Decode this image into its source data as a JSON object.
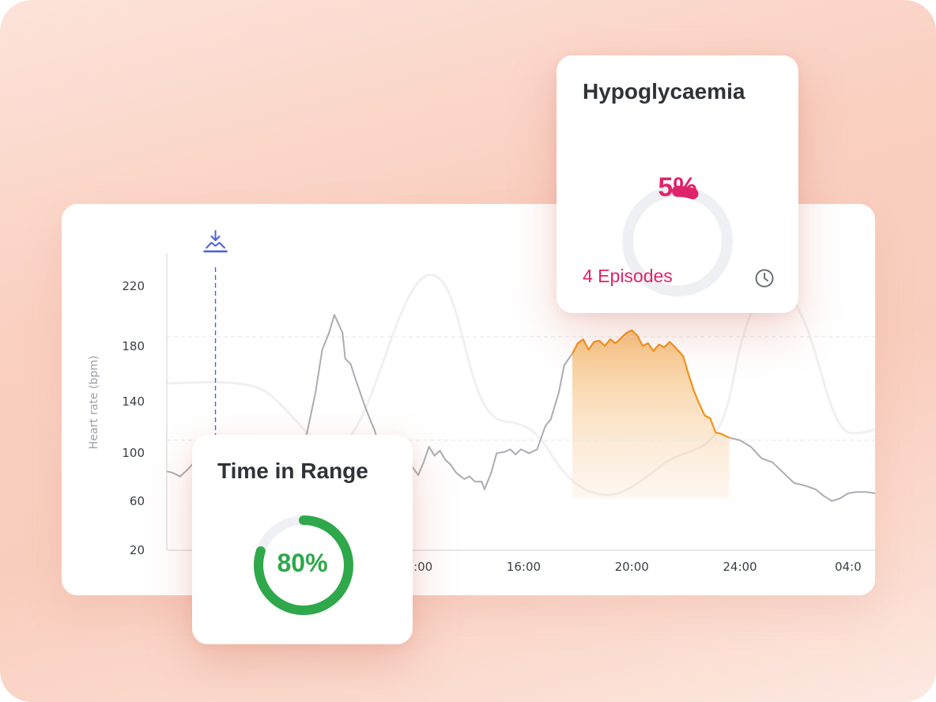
{
  "colors": {
    "line": "#a9adb3",
    "highlight": "#f0921a",
    "hypo": "#e0246b",
    "range": "#2ea84a",
    "track": "#eef0f3",
    "marker": "#4a5fe0"
  },
  "chart_data": {
    "type": "line",
    "title": "",
    "ylabel": "Heart rate (bpm)",
    "xlabel": "",
    "y_ticks": [
      20,
      60,
      100,
      140,
      180,
      220
    ],
    "x_ticks": [
      {
        "label": "12:00",
        "x": 12
      },
      {
        "label": "16:00",
        "x": 16
      },
      {
        "label": "20:00",
        "x": 20
      },
      {
        "label": "24:00",
        "x": 24
      },
      {
        "label": "04:0",
        "x": 28
      }
    ],
    "xlim": [
      2.8,
      29
    ],
    "ylim": [
      20,
      240
    ],
    "reference_lines": [
      185,
      105
    ],
    "marker": {
      "x": 4.6,
      "icon": "bolus-marker-icon"
    },
    "highlight_range": [
      17.8,
      23.7
    ],
    "series": [
      {
        "values": [
          [
            2.8,
            81
          ],
          [
            3.0,
            80
          ],
          [
            3.3,
            77
          ],
          [
            3.6,
            83
          ],
          [
            3.9,
            90
          ],
          [
            4.2,
            88
          ],
          [
            4.5,
            92
          ],
          [
            7.6,
            88
          ],
          [
            8.0,
            112
          ],
          [
            8.3,
            142
          ],
          [
            8.55,
            175
          ],
          [
            8.8,
            188
          ],
          [
            9.0,
            202
          ],
          [
            9.3,
            188
          ],
          [
            9.4,
            168
          ],
          [
            9.6,
            164
          ],
          [
            9.8,
            151
          ],
          [
            10.1,
            133
          ],
          [
            10.3,
            122
          ],
          [
            10.5,
            112
          ],
          [
            10.7,
            96
          ],
          [
            11.0,
            94
          ],
          [
            11.3,
            96
          ],
          [
            11.5,
            88
          ],
          [
            11.7,
            90
          ],
          [
            11.9,
            84
          ],
          [
            12.1,
            78
          ],
          [
            12.3,
            88
          ],
          [
            12.5,
            100
          ],
          [
            12.7,
            93
          ],
          [
            12.9,
            97
          ],
          [
            13.1,
            90
          ],
          [
            13.3,
            86
          ],
          [
            13.5,
            80
          ],
          [
            13.8,
            75
          ],
          [
            14.0,
            77
          ],
          [
            14.2,
            73
          ],
          [
            14.45,
            73
          ],
          [
            14.55,
            67
          ],
          [
            14.8,
            80
          ],
          [
            15.0,
            95
          ],
          [
            15.3,
            96
          ],
          [
            15.5,
            98
          ],
          [
            15.7,
            94
          ],
          [
            15.9,
            98
          ],
          [
            16.2,
            95
          ],
          [
            16.5,
            98
          ],
          [
            16.8,
            116
          ],
          [
            17.0,
            121
          ],
          [
            17.3,
            142
          ],
          [
            17.5,
            163
          ],
          [
            17.8,
            172
          ]
        ]
      },
      {
        "values": [
          [
            17.8,
            172
          ],
          [
            18.0,
            180
          ],
          [
            18.2,
            183
          ],
          [
            18.4,
            175
          ],
          [
            18.6,
            181
          ],
          [
            18.8,
            182
          ],
          [
            19.0,
            178
          ],
          [
            19.2,
            183
          ],
          [
            19.4,
            180
          ],
          [
            19.6,
            184
          ],
          [
            19.8,
            188
          ],
          [
            20.0,
            190
          ],
          [
            20.2,
            186
          ],
          [
            20.4,
            178
          ],
          [
            20.6,
            180
          ],
          [
            20.8,
            174
          ],
          [
            21.0,
            179
          ],
          [
            21.2,
            177
          ],
          [
            21.4,
            181
          ],
          [
            21.6,
            177
          ],
          [
            21.9,
            170
          ],
          [
            22.1,
            156
          ],
          [
            22.3,
            143
          ],
          [
            22.5,
            133
          ],
          [
            22.7,
            124
          ],
          [
            22.9,
            122
          ],
          [
            23.1,
            111
          ],
          [
            23.3,
            110
          ],
          [
            23.6,
            107
          ]
        ]
      },
      {
        "values": [
          [
            23.6,
            107
          ],
          [
            24.0,
            105
          ],
          [
            24.4,
            100
          ],
          [
            24.8,
            91
          ],
          [
            25.2,
            88
          ],
          [
            25.6,
            80
          ],
          [
            26.0,
            72
          ],
          [
            26.4,
            70
          ],
          [
            26.8,
            67
          ],
          [
            27.1,
            62
          ],
          [
            27.4,
            58
          ],
          [
            27.7,
            60
          ],
          [
            28.0,
            64
          ],
          [
            28.3,
            65
          ],
          [
            28.7,
            65
          ],
          [
            29.0,
            64
          ]
        ]
      }
    ]
  },
  "hypoglycaemia": {
    "title": "Hypoglycaemia",
    "value_label": "5%",
    "fraction": 0.05,
    "episodes_label": "4 Episodes",
    "icon": "clock-icon"
  },
  "time_in_range": {
    "title": "Time in Range",
    "value_label": "80%",
    "fraction": 0.8
  }
}
